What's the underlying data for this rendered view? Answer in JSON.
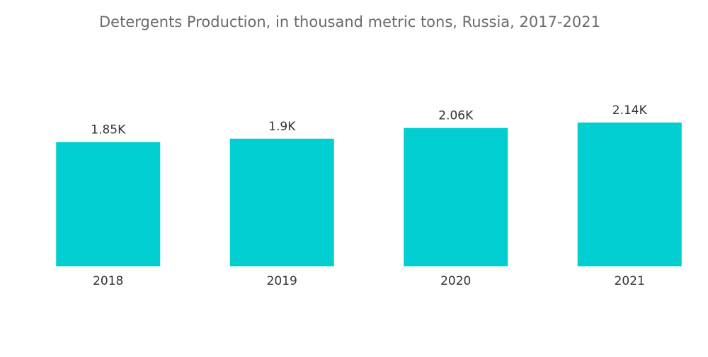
{
  "chart_data": {
    "type": "bar",
    "title": "Detergents Production, in thousand metric tons, Russia, 2017-2021",
    "categories": [
      "2018",
      "2019",
      "2020",
      "2021"
    ],
    "values": [
      1850,
      1900,
      2060,
      2140
    ],
    "value_labels": [
      "1.85K",
      "1.9K",
      "2.06K",
      "2.14K"
    ],
    "color": "#00ced1"
  }
}
